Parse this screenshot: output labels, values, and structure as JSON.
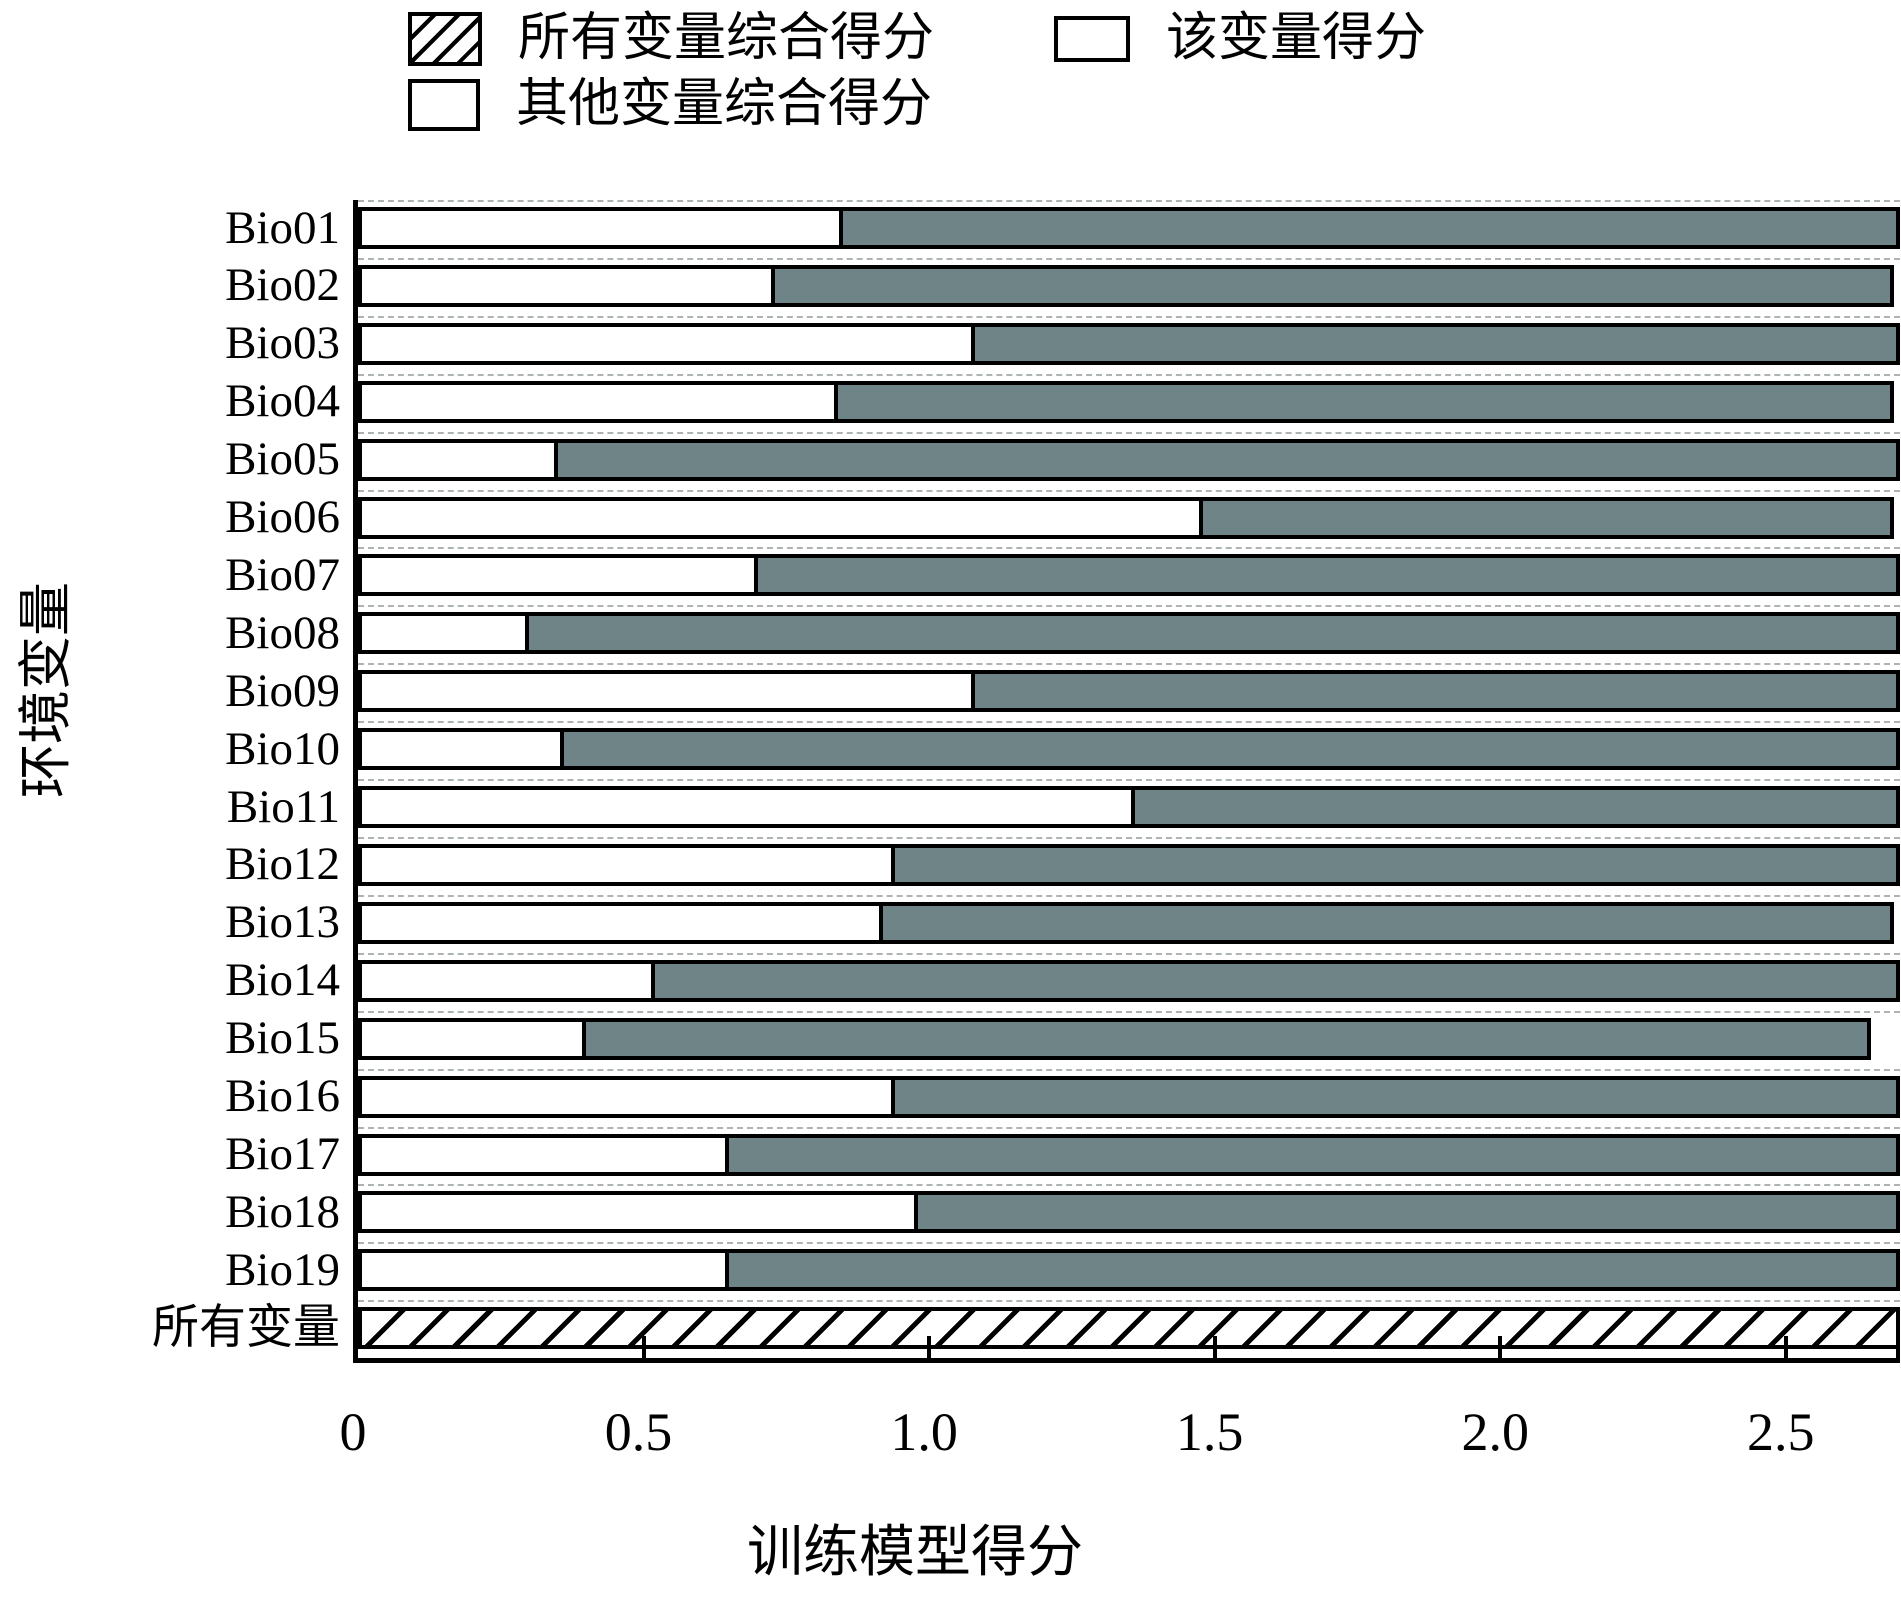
{
  "figure": {
    "legend": {
      "all_label": "所有变量综合得分",
      "this_label": "该变量得分",
      "others_label": "其他变量综合得分"
    },
    "x_axis": {
      "title": "训练模型得分",
      "tick_labels": [
        "0",
        "0.5",
        "1.0",
        "1.5",
        "2.0",
        "2.5"
      ],
      "tick_values": [
        0,
        0.5,
        1.0,
        1.5,
        2.0,
        2.5
      ],
      "max": 2.7
    },
    "y_axis": {
      "title": "环境变量"
    }
  },
  "chart_data": {
    "type": "bar",
    "orientation": "horizontal",
    "title": "",
    "xlabel": "训练模型得分",
    "ylabel": "环境变量",
    "xlim": [
      0,
      2.7
    ],
    "grid": "dashed horizontal separators between category rows",
    "legend_position": "top",
    "legend": [
      "所有变量综合得分",
      "该变量得分",
      "其他变量综合得分"
    ],
    "categories": [
      "Bio01",
      "Bio02",
      "Bio03",
      "Bio04",
      "Bio05",
      "Bio06",
      "Bio07",
      "Bio08",
      "Bio09",
      "Bio10",
      "Bio11",
      "Bio12",
      "Bio13",
      "Bio14",
      "Bio15",
      "Bio16",
      "Bio17",
      "Bio18",
      "Bio19",
      "所有变量"
    ],
    "series": [
      {
        "name": "该变量得分",
        "style": "white-fill",
        "values": [
          0.85,
          0.73,
          1.08,
          0.84,
          0.35,
          1.48,
          0.7,
          0.3,
          1.08,
          0.36,
          1.36,
          0.94,
          0.92,
          0.52,
          0.4,
          0.94,
          0.65,
          0.98,
          0.65,
          null
        ]
      },
      {
        "name": "其他变量综合得分",
        "style": "gray-fill",
        "values": [
          2.7,
          2.69,
          2.7,
          2.69,
          2.7,
          2.69,
          2.7,
          2.7,
          2.7,
          2.7,
          2.7,
          2.7,
          2.69,
          2.7,
          2.65,
          2.7,
          2.7,
          2.7,
          2.7,
          null
        ]
      },
      {
        "name": "所有变量综合得分",
        "style": "hatched",
        "values": [
          null,
          null,
          null,
          null,
          null,
          null,
          null,
          null,
          null,
          null,
          null,
          null,
          null,
          null,
          null,
          null,
          null,
          null,
          null,
          2.7
        ]
      }
    ]
  },
  "colors": {
    "others_fill": "#6e8487",
    "bar_border": "#000000",
    "grid_dash": "#aeb4b4",
    "background": "#ffffff"
  }
}
